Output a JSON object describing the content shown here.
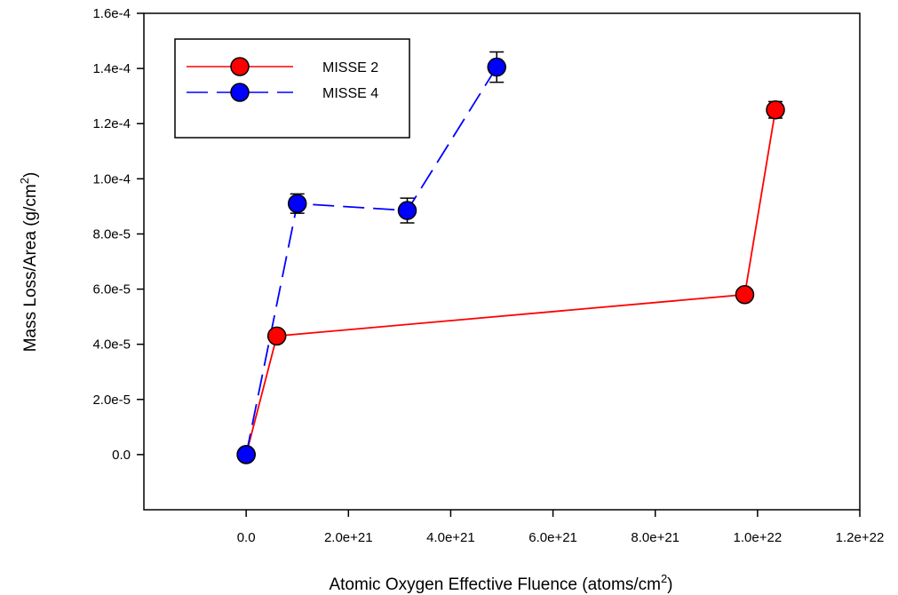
{
  "chart_data": {
    "type": "line",
    "xlabel": "Atomic Oxygen Effective Fluence (atoms/cm",
    "xlabel_sup": "2",
    "xlabel_end": ")",
    "ylabel": "Mass Loss/Area (g/cm",
    "ylabel_sup": "2",
    "ylabel_end": ")",
    "xlim": [
      -2e+21,
      1.2e+22
    ],
    "ylim": [
      -2e-05,
      0.00016
    ],
    "xticks": [
      0,
      2e+21,
      4e+21,
      6e+21,
      8e+21,
      1e+22,
      1.2e+22
    ],
    "xtick_labels": [
      "0.0",
      "2.0e+21",
      "4.0e+21",
      "6.0e+21",
      "8.0e+21",
      "1.0e+22",
      "1.2e+22"
    ],
    "yticks": [
      0,
      2e-05,
      4e-05,
      6e-05,
      8e-05,
      0.0001,
      0.00012,
      0.00014,
      0.00016
    ],
    "ytick_labels": [
      "0.0",
      "2.0e-5",
      "4.0e-5",
      "6.0e-5",
      "8.0e-5",
      "1.0e-4",
      "1.2e-4",
      "1.4e-4",
      "1.6e-4"
    ],
    "grid": false,
    "legend_position": "top-left",
    "series": [
      {
        "name": "MISSE 2",
        "color": "#ff0000",
        "line_style": "solid",
        "x": [
          0,
          6e+20,
          9.75e+21,
          1.035e+22
        ],
        "y": [
          0,
          4.3e-05,
          5.8e-05,
          0.000125
        ],
        "err": [
          0,
          0,
          0,
          3e-06
        ]
      },
      {
        "name": "MISSE 4",
        "color": "#0000ff",
        "line_style": "dashed",
        "x": [
          0,
          1e+21,
          3.15e+21,
          4.9e+21
        ],
        "y": [
          0,
          9.1e-05,
          8.85e-05,
          0.0001405
        ],
        "err": [
          0,
          3.5e-06,
          4.5e-06,
          5.5e-06
        ]
      }
    ]
  }
}
